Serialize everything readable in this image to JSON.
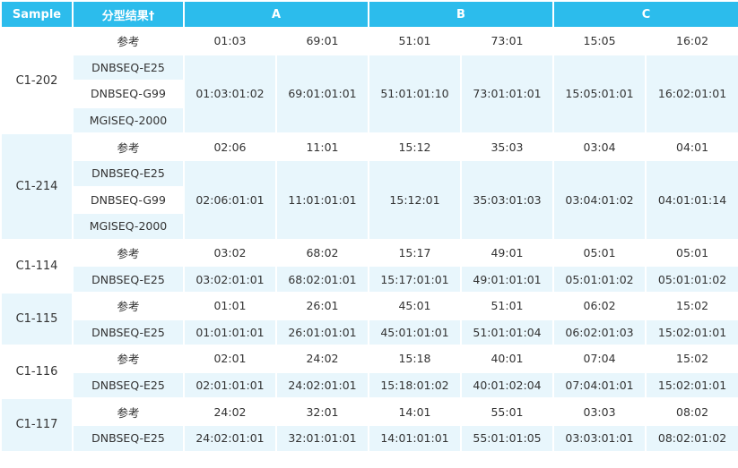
{
  "header": {
    "sample": "Sample",
    "type": "分型结果†",
    "a": "A",
    "b": "B",
    "c": "C"
  },
  "groups": [
    {
      "sample": "C1-202",
      "ref": {
        "label": "参考",
        "values": [
          "01:03",
          "69:01",
          "51:01",
          "73:01",
          "15:05",
          "16:02"
        ]
      },
      "platforms": [
        "DNBSEQ-E25",
        "DNBSEQ-G99",
        "MGISEQ-2000"
      ],
      "results": [
        "01:03:01:02",
        "69:01:01:01",
        "51:01:01:10",
        "73:01:01:01",
        "15:05:01:01",
        "16:02:01:01"
      ]
    },
    {
      "sample": "C1-214",
      "ref": {
        "label": "参考",
        "values": [
          "02:06",
          "11:01",
          "15:12",
          "35:03",
          "03:04",
          "04:01"
        ]
      },
      "platforms": [
        "DNBSEQ-E25",
        "DNBSEQ-G99",
        "MGISEQ-2000"
      ],
      "results": [
        "02:06:01:01",
        "11:01:01:01",
        "15:12:01",
        "35:03:01:03",
        "03:04:01:02",
        "04:01:01:14"
      ]
    },
    {
      "sample": "C1-114",
      "ref": {
        "label": "参考",
        "values": [
          "03:02",
          "68:02",
          "15:17",
          "49:01",
          "05:01",
          "05:01"
        ]
      },
      "platforms": [
        "DNBSEQ-E25"
      ],
      "results": [
        "03:02:01:01",
        "68:02:01:01",
        "15:17:01:01",
        "49:01:01:01",
        "05:01:01:02",
        "05:01:01:02"
      ]
    },
    {
      "sample": "C1-115",
      "ref": {
        "label": "参考",
        "values": [
          "01:01",
          "26:01",
          "45:01",
          "51:01",
          "06:02",
          "15:02"
        ]
      },
      "platforms": [
        "DNBSEQ-E25"
      ],
      "results": [
        "01:01:01:01",
        "26:01:01:01",
        "45:01:01:01",
        "51:01:01:04",
        "06:02:01:03",
        "15:02:01:01"
      ]
    },
    {
      "sample": "C1-116",
      "ref": {
        "label": "参考",
        "values": [
          "02:01",
          "24:02",
          "15:18",
          "40:01",
          "07:04",
          "15:02"
        ]
      },
      "platforms": [
        "DNBSEQ-E25"
      ],
      "results": [
        "02:01:01:01",
        "24:02:01:01",
        "15:18:01:02",
        "40:01:02:04",
        "07:04:01:01",
        "15:02:01:01"
      ]
    },
    {
      "sample": "C1-117",
      "ref": {
        "label": "参考",
        "values": [
          "24:02",
          "32:01",
          "14:01",
          "55:01",
          "03:03",
          "08:02"
        ]
      },
      "platforms": [
        "DNBSEQ-E25"
      ],
      "results": [
        "24:02:01:01",
        "32:01:01:01",
        "14:01:01:01",
        "55:01:01:05",
        "03:03:01:01",
        "08:02:01:02"
      ]
    }
  ]
}
